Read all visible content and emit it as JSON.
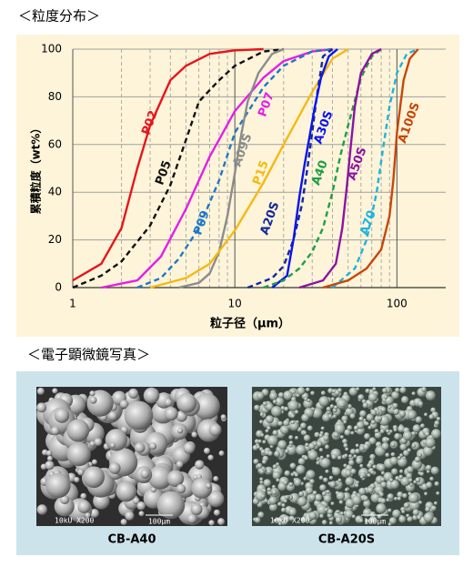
{
  "headings": [
    "＜粒度分布＞",
    "＜電子顕微鏡写真＞"
  ],
  "chart_data": {
    "type": "line",
    "x_label": "粒子径（μm）",
    "y_label": "累積粒度（wt%）",
    "xscale": "log",
    "xlim": [
      1,
      200
    ],
    "xticks": [
      1,
      10,
      100
    ],
    "ylim": [
      0,
      100
    ],
    "yticks": [
      0,
      20,
      40,
      60,
      80,
      100
    ],
    "grid": true,
    "minor_grid": true,
    "series": [
      {
        "name": "P02",
        "color": "#e8141b",
        "style": "solid",
        "x": [
          1,
          1.5,
          2,
          2.5,
          3,
          4,
          5,
          7,
          10,
          15
        ],
        "values": [
          3,
          10,
          25,
          50,
          68,
          87,
          93,
          98,
          99.5,
          100
        ]
      },
      {
        "name": "P05",
        "color": "#111111",
        "style": "dashed",
        "x": [
          1,
          1.5,
          2,
          3,
          4,
          5,
          6,
          8,
          10,
          15,
          20
        ],
        "values": [
          0,
          5,
          11,
          26,
          43,
          62,
          78,
          87,
          93,
          99,
          100
        ]
      },
      {
        "name": "P07",
        "color": "#e61ee6",
        "style": "solid",
        "x": [
          1.5,
          2.5,
          3.5,
          5,
          7,
          10,
          15,
          20,
          30,
          40
        ],
        "values": [
          0,
          3,
          13,
          33,
          55,
          74,
          88,
          95,
          99,
          100
        ]
      },
      {
        "name": "P09",
        "color": "#1e78c8",
        "style": "dashed",
        "x": [
          2.5,
          3.5,
          4.5,
          6,
          8,
          10,
          15,
          20,
          30,
          40
        ],
        "values": [
          0,
          4,
          12,
          25,
          45,
          65,
          84,
          93,
          99,
          100
        ]
      },
      {
        "name": "A09S",
        "color": "#8c8c8c",
        "style": "solid",
        "x": [
          4.5,
          6,
          7,
          8,
          9,
          10,
          11,
          12,
          14,
          17,
          20
        ],
        "values": [
          0,
          2,
          6,
          15,
          30,
          48,
          65,
          78,
          90,
          98,
          100
        ]
      },
      {
        "name": "P15",
        "color": "#f5b914",
        "style": "solid",
        "x": [
          3,
          5,
          7,
          10,
          15,
          20,
          30,
          40,
          50
        ],
        "values": [
          0,
          4,
          10,
          24,
          44,
          60,
          82,
          96,
          100
        ]
      },
      {
        "name": "A20S",
        "color": "#14289b",
        "style": "dashed",
        "x": [
          12,
          17,
          20,
          23,
          26,
          28,
          30,
          32,
          35,
          40
        ],
        "values": [
          0,
          4,
          9,
          20,
          35,
          50,
          65,
          80,
          97,
          100
        ]
      },
      {
        "name": "A30S",
        "color": "#0a14f0",
        "style": "solid",
        "x": [
          17,
          21,
          23,
          25,
          27,
          29,
          31,
          34,
          38,
          43
        ],
        "values": [
          0,
          5,
          20,
          38,
          52,
          64,
          75,
          88,
          97,
          100
        ]
      },
      {
        "name": "A40",
        "color": "#1ea046",
        "style": "dashed",
        "x": [
          15,
          20,
          25,
          30,
          35,
          40,
          45,
          50,
          60,
          70,
          80
        ],
        "values": [
          0,
          3,
          8,
          15,
          25,
          40,
          56,
          68,
          88,
          97,
          100
        ]
      },
      {
        "name": "A50S",
        "color": "#8c14a0",
        "style": "solid",
        "x": [
          25,
          35,
          42,
          46,
          49,
          52,
          55,
          60,
          70,
          80
        ],
        "values": [
          0,
          3,
          10,
          25,
          42,
          60,
          76,
          90,
          98,
          100
        ]
      },
      {
        "name": "A70",
        "color": "#1eb4dc",
        "style": "dashed",
        "x": [
          40,
          55,
          65,
          75,
          82,
          90,
          100,
          115,
          135
        ],
        "values": [
          0,
          8,
          20,
          40,
          58,
          76,
          90,
          98,
          100
        ]
      },
      {
        "name": "A100S",
        "color": "#c8460a",
        "style": "solid",
        "x": [
          35,
          50,
          65,
          80,
          90,
          95,
          100,
          110,
          120,
          135
        ],
        "values": [
          0,
          3,
          8,
          16,
          30,
          45,
          65,
          87,
          96,
          100
        ]
      }
    ]
  },
  "micrographs": [
    {
      "caption": "CB-A40",
      "scale_labels": [
        "10kU X200",
        "100μm"
      ]
    },
    {
      "caption": "CB-A20S",
      "scale_labels": [
        "10kU X200",
        "100μm"
      ]
    }
  ]
}
